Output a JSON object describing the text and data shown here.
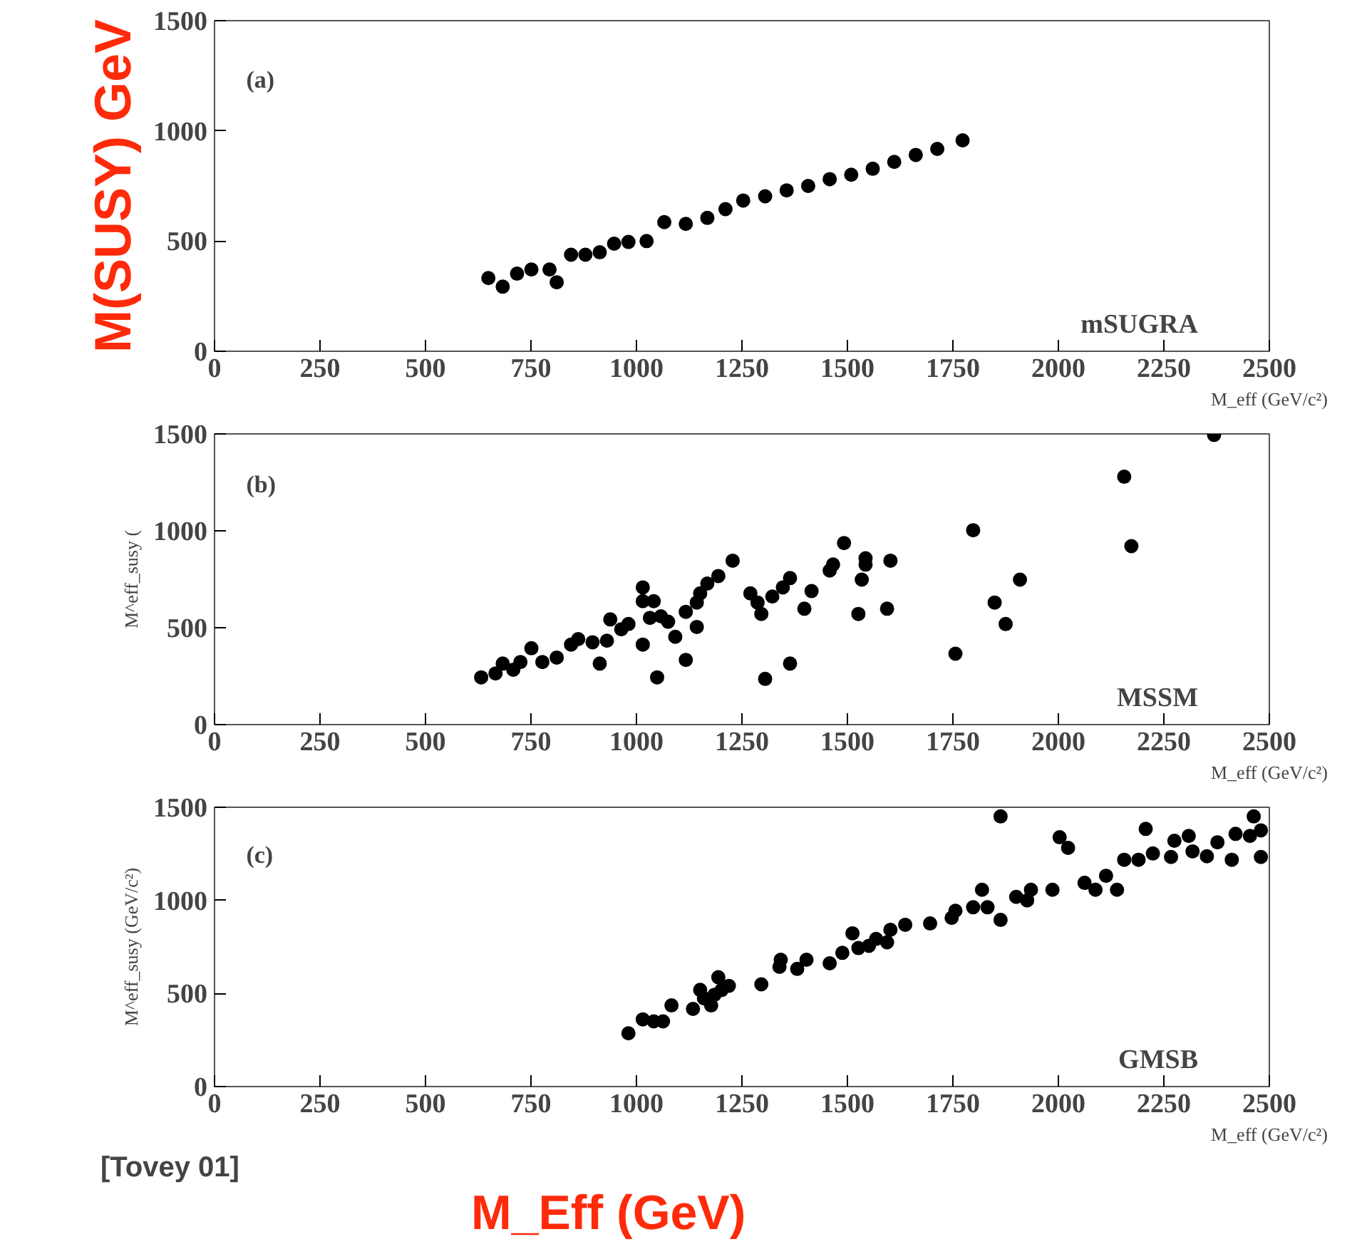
{
  "chart_data": [
    {
      "type": "scatter",
      "ylabel": "M(SUSY) GeV",
      "xlabel": "M_eff (GeV/c²)",
      "annotations": [
        "(a)",
        "mSUGRA"
      ],
      "xlim": [
        0,
        2500
      ],
      "ylim": [
        0,
        1500
      ],
      "xticks": [
        0,
        250,
        500,
        750,
        1000,
        1250,
        1500,
        1750,
        2000,
        2250,
        2500
      ],
      "yticks": [
        0,
        500,
        1000,
        1500
      ],
      "marker": "circle",
      "series": [
        {
          "color": "#000000",
          "x": [
            649,
            683,
            717,
            751,
            794,
            811,
            845,
            879,
            913,
            947,
            981,
            1024,
            1066,
            1117,
            1168,
            1211,
            1253,
            1305,
            1356,
            1407,
            1458,
            1509,
            1560,
            1611,
            1662,
            1713,
            1773
          ],
          "values": [
            332,
            293,
            352,
            371,
            371,
            313,
            438,
            438,
            449,
            488,
            496,
            500,
            586,
            578,
            605,
            645,
            684,
            703,
            730,
            750,
            781,
            801,
            828,
            859,
            891,
            918,
            957
          ]
        }
      ]
    },
    {
      "type": "scatter",
      "ylabel": "M^eff_susy (",
      "xlabel": "M_eff (GeV/c²)",
      "annotations": [
        "(b)",
        "MSSM"
      ],
      "xlim": [
        0,
        2500
      ],
      "ylim": [
        0,
        1500
      ],
      "xticks": [
        0,
        250,
        500,
        750,
        1000,
        1250,
        1500,
        1750,
        2000,
        2250,
        2500
      ],
      "yticks": [
        0,
        500,
        1000,
        1500
      ],
      "marker": "circle",
      "series": [
        {
          "color": "#000000",
          "x": [
            632,
            666,
            683,
            708,
            725,
            751,
            777,
            811,
            845,
            862,
            896,
            913,
            930,
            938,
            964,
            981,
            1015,
            1015,
            1015,
            1041,
            1032,
            1058,
            1049,
            1075,
            1092,
            1117,
            1117,
            1143,
            1143,
            1151,
            1168,
            1194,
            1228,
            1270,
            1287,
            1296,
            1305,
            1322,
            1347,
            1364,
            1364,
            1398,
            1415,
            1458,
            1466,
            1492,
            1526,
            1534,
            1543,
            1543,
            1594,
            1602,
            1756,
            1798,
            1849,
            1875,
            1909,
            2156,
            2173,
            2369
          ],
          "values": [
            244,
            264,
            315,
            283,
            323,
            394,
            323,
            346,
            413,
            441,
            425,
            315,
            433,
            543,
            492,
            519,
            413,
            708,
            637,
            637,
            551,
            559,
            244,
            531,
            453,
            334,
            582,
            630,
            504,
            677,
            728,
            767,
            846,
            677,
            630,
            571,
            236,
            661,
            708,
            756,
            315,
            598,
            689,
            795,
            826,
            937,
            571,
            748,
            858,
            826,
            598,
            846,
            366,
            1003,
            630,
            519,
            748,
            1279,
            921,
            1495
          ]
        }
      ]
    },
    {
      "type": "scatter",
      "ylabel": "M^eff_susy (GeV/c²)",
      "xlabel": "M_eff (GeV/c²)",
      "annotations": [
        "(c)",
        "GMSB",
        "[Tovey 01]",
        "M_Eff (GeV)"
      ],
      "xlim": [
        0,
        2500
      ],
      "ylim": [
        0,
        1500
      ],
      "xticks": [
        0,
        250,
        500,
        750,
        1000,
        1250,
        1500,
        1750,
        2000,
        2250,
        2500
      ],
      "yticks": [
        0,
        500,
        1000,
        1500
      ],
      "marker": "circle",
      "series": [
        {
          "color": "#000000",
          "x": [
            981,
            1015,
            1041,
            1063,
            1083,
            1134,
            1151,
            1160,
            1177,
            1185,
            1194,
            1202,
            1219,
            1296,
            1339,
            1342,
            1381,
            1403,
            1458,
            1488,
            1512,
            1526,
            1551,
            1568,
            1594,
            1602,
            1637,
            1696,
            1747,
            1756,
            1798,
            1819,
            1832,
            1863,
            1863,
            1900,
            1926,
            1935,
            1986,
            2003,
            2023,
            2062,
            2088,
            2113,
            2139,
            2156,
            2190,
            2207,
            2224,
            2267,
            2275,
            2309,
            2318,
            2352,
            2377,
            2411,
            2420,
            2454,
            2463,
            2480,
            2480
          ],
          "values": [
            286,
            361,
            350,
            350,
            436,
            417,
            519,
            474,
            436,
            493,
            587,
            519,
            541,
            549,
            643,
            681,
            632,
            681,
            662,
            718,
            823,
            744,
            756,
            793,
            775,
            842,
            869,
            876,
            906,
            944,
            963,
            1057,
            963,
            895,
            1451,
            1019,
            1000,
            1057,
            1057,
            1339,
            1282,
            1094,
            1057,
            1132,
            1057,
            1218,
            1218,
            1384,
            1252,
            1233,
            1320,
            1346,
            1263,
            1237,
            1312,
            1218,
            1357,
            1346,
            1451,
            1376,
            1233
          ]
        }
      ]
    }
  ]
}
